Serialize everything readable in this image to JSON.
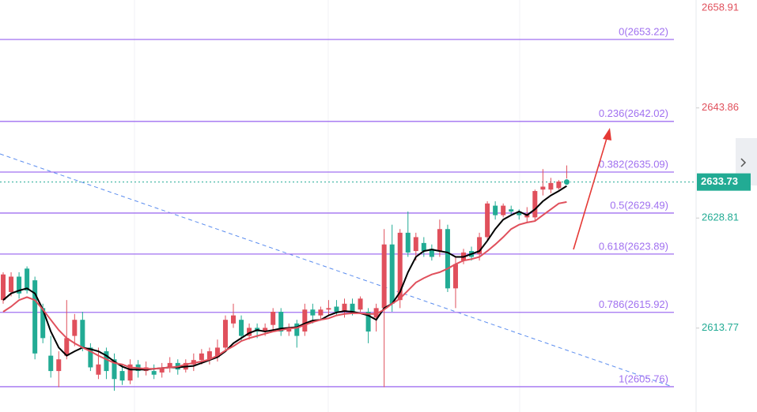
{
  "chart_data": {
    "type": "candlestick",
    "up_color": "#e0505c",
    "down_color": "#22ab94",
    "fib_color": "#a070f0",
    "ylim": [
      2602.3,
      2658.61
    ],
    "xlim": [
      -0.4,
      87.3
    ],
    "yticks": [
      2658.91,
      2643.86,
      2628.81,
      2613.77
    ],
    "last_price": 2633.73,
    "fib_levels": [
      {
        "value": 2653.22,
        "label": "0(2653.22)"
      },
      {
        "value": 2642.02,
        "label": "0.236(2642.02)"
      },
      {
        "value": 2635.09,
        "label": "0.382(2635.09)"
      },
      {
        "value": 2629.49,
        "label": "0.5(2629.49)"
      },
      {
        "value": 2623.89,
        "label": "0.618(2623.89)"
      },
      {
        "value": 2615.92,
        "label": "0.786(2615.92)"
      },
      {
        "value": 2605.76,
        "label": "1(2605.76)"
      }
    ],
    "candles": [
      [
        2617.6,
        2621.4,
        2617.1,
        2621.1
      ],
      [
        2618.7,
        2621.4,
        2618.1,
        2620.8
      ],
      [
        2620.8,
        2621.4,
        2617.8,
        2618.5
      ],
      [
        2621.9,
        2622.2,
        2618.5,
        2618.9
      ],
      [
        2620.3,
        2620.8,
        2609.5,
        2610.3
      ],
      [
        2616.5,
        2617.1,
        2611.7,
        2612.4
      ],
      [
        2610.0,
        2612.7,
        2607.0,
        2607.9
      ],
      [
        2607.9,
        2610.6,
        2605.7,
        2609.5
      ],
      [
        2610.0,
        2617.6,
        2609.5,
        2612.4
      ],
      [
        2612.7,
        2615.7,
        2611.3,
        2614.9
      ],
      [
        2614.9,
        2616.0,
        2610.6,
        2611.1
      ],
      [
        2611.1,
        2611.7,
        2607.9,
        2608.4
      ],
      [
        2607.4,
        2611.1,
        2606.8,
        2608.8
      ],
      [
        2610.6,
        2611.1,
        2606.8,
        2607.9
      ],
      [
        2609.5,
        2610.3,
        2605.2,
        2606.8
      ],
      [
        2607.9,
        2608.8,
        2606.0,
        2606.6
      ],
      [
        2606.6,
        2609.5,
        2606.1,
        2608.8
      ],
      [
        2608.8,
        2609.4,
        2607.0,
        2607.9
      ],
      [
        2607.9,
        2609.2,
        2607.3,
        2608.4
      ],
      [
        2607.9,
        2608.8,
        2606.8,
        2607.4
      ],
      [
        2607.7,
        2609.0,
        2607.0,
        2608.4
      ],
      [
        2608.4,
        2609.8,
        2607.7,
        2609.0
      ],
      [
        2609.0,
        2609.5,
        2607.4,
        2608.1
      ],
      [
        2608.1,
        2609.5,
        2607.7,
        2609.0
      ],
      [
        2608.8,
        2610.3,
        2607.9,
        2609.4
      ],
      [
        2609.4,
        2610.9,
        2608.8,
        2610.3
      ],
      [
        2609.5,
        2611.1,
        2608.8,
        2610.6
      ],
      [
        2609.8,
        2612.2,
        2609.2,
        2611.1
      ],
      [
        2611.1,
        2615.5,
        2610.6,
        2614.9
      ],
      [
        2614.4,
        2617.1,
        2613.8,
        2615.5
      ],
      [
        2614.9,
        2615.5,
        2612.0,
        2612.7
      ],
      [
        2612.7,
        2614.4,
        2612.2,
        2613.8
      ],
      [
        2613.8,
        2614.4,
        2612.4,
        2613.3
      ],
      [
        2613.3,
        2614.4,
        2612.7,
        2613.8
      ],
      [
        2614.2,
        2616.5,
        2613.5,
        2616.0
      ],
      [
        2616.0,
        2616.5,
        2612.7,
        2613.3
      ],
      [
        2613.3,
        2614.4,
        2612.7,
        2613.8
      ],
      [
        2614.4,
        2614.9,
        2611.1,
        2612.7
      ],
      [
        2613.3,
        2617.1,
        2612.7,
        2616.3
      ],
      [
        2616.3,
        2617.1,
        2614.4,
        2615.5
      ],
      [
        2615.5,
        2616.7,
        2614.9,
        2616.3
      ],
      [
        2616.3,
        2617.6,
        2615.5,
        2616.5
      ],
      [
        2616.7,
        2617.6,
        2615.5,
        2616.0
      ],
      [
        2616.0,
        2617.8,
        2615.2,
        2617.1
      ],
      [
        2617.1,
        2617.8,
        2615.5,
        2616.0
      ],
      [
        2616.3,
        2618.1,
        2616.0,
        2617.8
      ],
      [
        2616.0,
        2616.5,
        2611.7,
        2613.3
      ],
      [
        2615.2,
        2617.1,
        2613.3,
        2616.5
      ],
      [
        2616.5,
        2627.3,
        2605.7,
        2625.2
      ],
      [
        2625.2,
        2627.9,
        2616.0,
        2617.1
      ],
      [
        2617.6,
        2627.3,
        2616.5,
        2626.8
      ],
      [
        2626.8,
        2629.7,
        2623.5,
        2624.1
      ],
      [
        2624.3,
        2626.8,
        2623.0,
        2626.2
      ],
      [
        2625.4,
        2626.2,
        2623.5,
        2624.3
      ],
      [
        2624.6,
        2625.2,
        2623.0,
        2623.5
      ],
      [
        2624.3,
        2628.6,
        2623.5,
        2627.3
      ],
      [
        2627.3,
        2627.9,
        2618.7,
        2619.2
      ],
      [
        2619.2,
        2623.5,
        2616.5,
        2622.5
      ],
      [
        2623.0,
        2624.6,
        2622.5,
        2624.1
      ],
      [
        2624.3,
        2624.9,
        2623.0,
        2623.5
      ],
      [
        2623.9,
        2626.8,
        2623.0,
        2626.2
      ],
      [
        2626.2,
        2631.1,
        2625.7,
        2630.8
      ],
      [
        2630.5,
        2631.1,
        2628.6,
        2629.2
      ],
      [
        2629.2,
        2630.8,
        2628.9,
        2630.5
      ],
      [
        2630.0,
        2630.5,
        2629.2,
        2629.7
      ],
      [
        2629.7,
        2630.0,
        2628.6,
        2629.2
      ],
      [
        2628.9,
        2630.3,
        2628.2,
        2629.4
      ],
      [
        2628.9,
        2632.7,
        2628.4,
        2632.5
      ],
      [
        2632.7,
        2635.5,
        2631.9,
        2633.1
      ],
      [
        2632.7,
        2634.3,
        2632.2,
        2633.6
      ],
      [
        2632.9,
        2634.0,
        2632.7,
        2633.8
      ],
      [
        2633.6,
        2636.0,
        2633.5,
        2633.7
      ]
    ],
    "series": [
      {
        "color": "#000000",
        "values": [
          2617.6,
          2618.5,
          2618.9,
          2619.2,
          2618.5,
          2616.3,
          2613.3,
          2611.1,
          2610.0,
          2610.6,
          2611.1,
          2610.9,
          2610.6,
          2610.0,
          2609.2,
          2608.5,
          2608.1,
          2608.1,
          2608.1,
          2608.2,
          2608.3,
          2608.4,
          2608.4,
          2608.5,
          2608.6,
          2609.0,
          2609.4,
          2609.8,
          2610.6,
          2611.7,
          2612.4,
          2613.1,
          2613.5,
          2613.3,
          2613.5,
          2613.7,
          2613.8,
          2613.9,
          2614.4,
          2614.8,
          2614.9,
          2615.5,
          2615.9,
          2616.1,
          2616.0,
          2615.8,
          2615.5,
          2614.9,
          2616.5,
          2617.1,
          2618.7,
          2621.4,
          2623.5,
          2624.3,
          2624.5,
          2624.3,
          2624.1,
          2623.5,
          2623.5,
          2623.9,
          2624.3,
          2625.7,
          2627.3,
          2628.6,
          2629.2,
          2629.7,
          2629.2,
          2630.0,
          2631.1,
          2631.9,
          2632.5,
          2633.2
        ]
      },
      {
        "color": "#e0505c",
        "values": [
          2616.0,
          2616.7,
          2617.6,
          2618.0,
          2617.6,
          2616.3,
          2614.9,
          2613.5,
          2612.4,
          2611.7,
          2611.1,
          2610.6,
          2610.0,
          2609.5,
          2609.0,
          2608.8,
          2608.4,
          2608.3,
          2608.2,
          2608.2,
          2608.3,
          2608.4,
          2608.5,
          2608.8,
          2609.0,
          2609.2,
          2609.5,
          2610.0,
          2610.7,
          2611.3,
          2612.0,
          2612.4,
          2612.7,
          2613.0,
          2613.3,
          2613.5,
          2613.7,
          2613.8,
          2614.2,
          2614.6,
          2614.9,
          2615.1,
          2615.5,
          2615.7,
          2615.8,
          2615.8,
          2615.7,
          2615.7,
          2616.3,
          2617.1,
          2617.8,
          2618.9,
          2620.0,
          2620.6,
          2621.1,
          2621.4,
          2621.9,
          2622.5,
          2623.0,
          2623.2,
          2623.5,
          2624.3,
          2625.2,
          2626.2,
          2627.3,
          2627.9,
          2628.2,
          2628.4,
          2629.2,
          2630.0,
          2630.8,
          2631.0
        ]
      }
    ]
  }
}
